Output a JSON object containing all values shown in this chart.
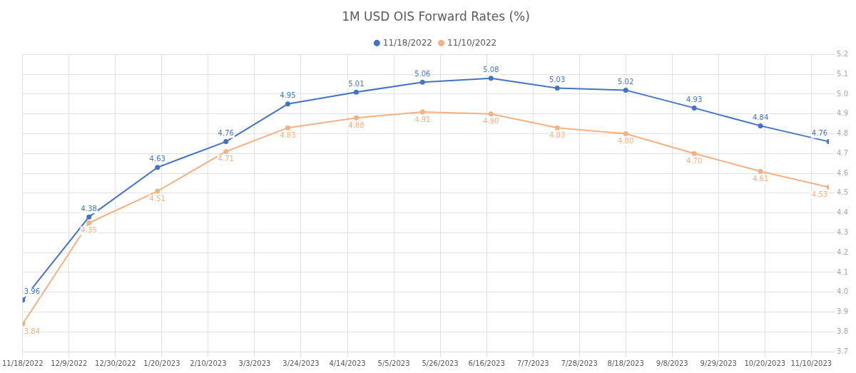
{
  "chart_data": {
    "type": "line",
    "title": "1M USD OIS Forward Rates (%)",
    "x": [
      "2022-11-18",
      "2022-12-18",
      "2023-01-18",
      "2023-02-18",
      "2023-03-18",
      "2023-04-18",
      "2023-05-18",
      "2023-06-18",
      "2023-07-18",
      "2023-08-18",
      "2023-09-18",
      "2023-10-18",
      "2023-11-18"
    ],
    "series": [
      {
        "name": "11/18/2022",
        "color": "#4472c4",
        "values": [
          3.96,
          4.38,
          4.63,
          4.76,
          4.95,
          5.01,
          5.06,
          5.08,
          5.03,
          5.02,
          4.93,
          4.84,
          4.76
        ],
        "value_labels": [
          "3.96",
          "4.38",
          "4.63",
          "4.76",
          "4.95",
          "5.01",
          "5.06",
          "5.08",
          "5.03",
          "5.02",
          "4.93",
          "4.84",
          "4.76"
        ]
      },
      {
        "name": "11/10/2022",
        "color": "#f4b183",
        "values": [
          3.84,
          4.35,
          4.51,
          4.71,
          4.83,
          4.88,
          4.91,
          4.9,
          4.83,
          4.8,
          4.7,
          4.61,
          4.53
        ],
        "value_labels": [
          "3.84",
          "4.35",
          "4.51",
          "4.71",
          "4.83",
          "4.88",
          "4.91",
          "4.90",
          "4.83",
          "4.80",
          "4.70",
          "4.61",
          "4.53"
        ]
      }
    ],
    "xlim": [
      "2022-11-18",
      "2023-11-18"
    ],
    "xticks": [
      {
        "value": "2022-11-18",
        "label": "11/18/2022"
      },
      {
        "value": "2022-12-09",
        "label": "12/9/2022"
      },
      {
        "value": "2022-12-30",
        "label": "12/30/2022"
      },
      {
        "value": "2023-01-20",
        "label": "1/20/2023"
      },
      {
        "value": "2023-02-10",
        "label": "2/10/2023"
      },
      {
        "value": "2023-03-03",
        "label": "3/3/2023"
      },
      {
        "value": "2023-03-24",
        "label": "3/24/2023"
      },
      {
        "value": "2023-04-14",
        "label": "4/14/2023"
      },
      {
        "value": "2023-05-05",
        "label": "5/5/2023"
      },
      {
        "value": "2023-05-26",
        "label": "5/26/2023"
      },
      {
        "value": "2023-06-16",
        "label": "6/16/2023"
      },
      {
        "value": "2023-07-07",
        "label": "7/7/2023"
      },
      {
        "value": "2023-07-28",
        "label": "7/28/2023"
      },
      {
        "value": "2023-08-18",
        "label": "8/18/2023"
      },
      {
        "value": "2023-09-08",
        "label": "9/8/2023"
      },
      {
        "value": "2023-09-29",
        "label": "9/29/2023"
      },
      {
        "value": "2023-10-20",
        "label": "10/20/2023"
      },
      {
        "value": "2023-11-10",
        "label": "11/10/2023"
      }
    ],
    "ylim": [
      3.7,
      5.2
    ],
    "yticks": [
      3.7,
      3.8,
      3.9,
      {
        "value": 4,
        "label": "4.0"
      },
      4.1,
      4.2,
      4.3,
      4.4,
      4.5,
      4.6,
      4.7,
      4.8,
      4.9,
      {
        "value": 5,
        "label": "5.0"
      },
      5.1,
      5.2
    ],
    "grid": true,
    "legend": "top",
    "marker": "circle",
    "line_style": "solid"
  }
}
